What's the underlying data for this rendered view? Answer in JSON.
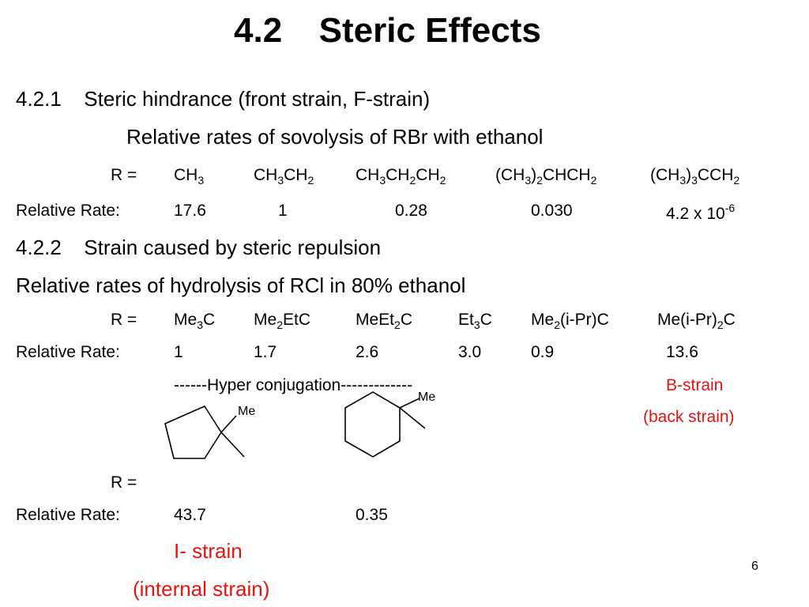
{
  "title": {
    "number": "4.2",
    "text": "Steric Effects"
  },
  "s1": {
    "number": "4.2.1",
    "heading": "Steric hindrance (front strain, F-strain)",
    "subtitle": "Relative rates of sovolysis of RBr with ethanol",
    "r_label": "R =",
    "rate_label": "Relative Rate:",
    "rates": [
      "17.6",
      "1",
      "0.28",
      "0.030"
    ],
    "rate_last": {
      "base": "4.2 x 10",
      "exp": "-6"
    }
  },
  "s2": {
    "number": "4.2.2",
    "heading": "Strain caused by steric repulsion",
    "subtitle": "Relative rates of hydrolysis of RCl in 80% ethanol",
    "r_label": "R =",
    "rate_label": "Relative Rate:",
    "rates": [
      "1",
      "1.7",
      "2.6",
      "3.0",
      "0.9",
      "13.6"
    ],
    "hyper": "------Hyper conjugation-------------",
    "bstrain": "B-strain",
    "bstrain_sub": "(back strain)"
  },
  "s3": {
    "r_label": "R =",
    "rate_label": "Relative Rate:",
    "rates": [
      "43.7",
      "0.35"
    ],
    "me1": "Me",
    "me2": "Me",
    "istrain": "I- strain",
    "istrain_sub": "(internal strain)"
  },
  "page_number": "6",
  "colors": {
    "accent": "#e8130f",
    "text": "#000000"
  }
}
